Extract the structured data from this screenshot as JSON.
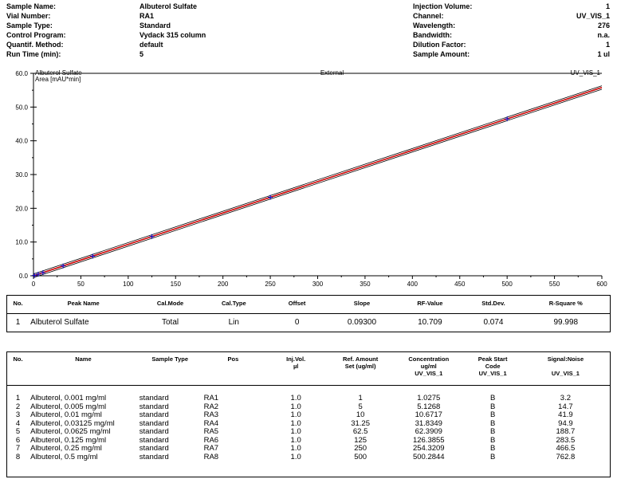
{
  "header": {
    "left": [
      {
        "label": "Sample Name:",
        "value": "Albuterol Sulfate"
      },
      {
        "label": "Vial Number:",
        "value": "RA1"
      },
      {
        "label": "Sample Type:",
        "value": "Standard"
      },
      {
        "label": "Control Program:",
        "value": "Vydack 315 column"
      },
      {
        "label": "Quantif. Method:",
        "value": "default"
      },
      {
        "label": "Run Time (min):",
        "value": "5"
      }
    ],
    "right": [
      {
        "label": "Injection Volume:",
        "value": "1"
      },
      {
        "label": "Channel:",
        "value": "UV_VIS_1"
      },
      {
        "label": "Wavelength:",
        "value": "276"
      },
      {
        "label": "Bandwidth:",
        "value": "n.a."
      },
      {
        "label": "Dilution Factor:",
        "value": "1"
      },
      {
        "label": "Sample Amount:",
        "value": "1 ul"
      }
    ]
  },
  "chart_data": {
    "type": "scatter",
    "title": "Albuterol Sulfate",
    "center_label": "External",
    "channel_label": "UV_VIS_1",
    "ylabel": "Area  [mAU*min]",
    "xlim": [
      0,
      600
    ],
    "ylim": [
      0,
      60
    ],
    "x_ticks": [
      0,
      50,
      100,
      150,
      200,
      250,
      300,
      350,
      400,
      450,
      500,
      550,
      600
    ],
    "y_ticks": [
      0,
      10,
      20,
      30,
      40,
      50,
      60
    ],
    "y_tick_labels": [
      "0.0",
      "10.0",
      "20.0",
      "30.0",
      "40.0",
      "50.0",
      "60.0"
    ],
    "points": {
      "x": [
        1,
        5,
        10,
        31.25,
        62.5,
        125,
        250,
        500
      ],
      "y": [
        0.093,
        0.465,
        0.93,
        2.906,
        5.813,
        11.625,
        23.25,
        46.5
      ]
    },
    "fit": {
      "slope": 0.093,
      "offset": 0
    },
    "colors": {
      "fit": "#cc0000",
      "band": "#000000",
      "points": "#0000cc",
      "frame": "#000000"
    }
  },
  "calibration": {
    "headers": [
      "No.",
      "Peak Name",
      "Cal.Mode",
      "Cal.Type",
      "Offset",
      "Slope",
      "RF-Value",
      "Std.Dev.",
      "R-Square %"
    ],
    "rows": [
      [
        "1",
        "Albuterol Sulfate",
        "Total",
        "Lin",
        "0",
        "0.09300",
        "10.709",
        "0.074",
        "99.998"
      ]
    ]
  },
  "samples": {
    "headers": [
      "No.",
      "Name",
      "Sample Type",
      "Pos",
      "Inj.Vol.\nµl",
      "Ref. Amount\nSet (ug/ml)",
      "Concentration\nug/ml\nUV_VIS_1",
      "Peak Start\nCode\nUV_VIS_1",
      "Signal:Noise\n\nUV_VIS_1"
    ],
    "rows": [
      [
        "1",
        "Albuterol, 0.001 mg/ml",
        "standard",
        "RA1",
        "1.0",
        "1",
        "1.0275",
        "B",
        "3.2"
      ],
      [
        "2",
        "Albuterol, 0.005 mg/ml",
        "standard",
        "RA2",
        "1.0",
        "5",
        "5.1268",
        "B",
        "14.7"
      ],
      [
        "3",
        "Albuterol, 0.01 mg/ml",
        "standard",
        "RA3",
        "1.0",
        "10",
        "10.6717",
        "B",
        "41.9"
      ],
      [
        "4",
        "Albuterol, 0.03125 mg/ml",
        "standard",
        "RA4",
        "1.0",
        "31.25",
        "31.8349",
        "B",
        "94.9"
      ],
      [
        "5",
        "Albuterol, 0.0625 mg/ml",
        "standard",
        "RA5",
        "1.0",
        "62.5",
        "62.3909",
        "B",
        "188.7"
      ],
      [
        "6",
        "Albuterol,  0.125 mg/ml",
        "standard",
        "RA6",
        "1.0",
        "125",
        "126.3855",
        "B",
        "283.5"
      ],
      [
        "7",
        "Albuterol, 0.25 mg/ml",
        "standard",
        "RA7",
        "1.0",
        "250",
        "254.3209",
        "B",
        "466.5"
      ],
      [
        "8",
        "Albuterol, 0.5 mg/ml",
        "standard",
        "RA8",
        "1.0",
        "500",
        "500.2844",
        "B",
        "762.8"
      ]
    ]
  }
}
